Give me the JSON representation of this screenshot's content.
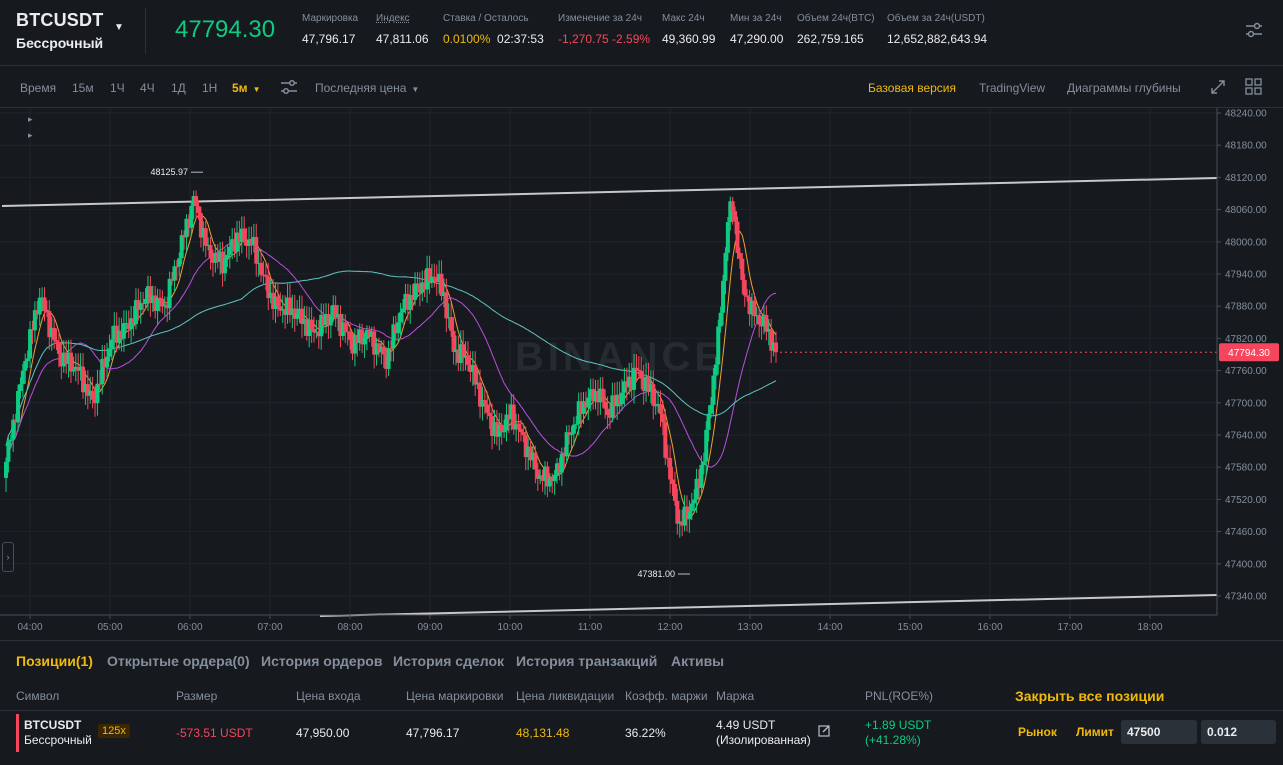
{
  "header": {
    "symbol": "BTCUSDT",
    "contract": "Бессрочный",
    "last_price": "47794.30",
    "stats": [
      {
        "label": "Маркировка",
        "value": "47,796.17"
      },
      {
        "label": "Индекс",
        "value": "47,811.06"
      },
      {
        "label": "Ставка / Осталось",
        "value_rate": "0.0100%",
        "value_time": "02:37:53"
      },
      {
        "label": "Изменение за 24ч",
        "value": "-1,270.75 -2.59%"
      },
      {
        "label": "Макс 24ч",
        "value": "49,360.99"
      },
      {
        "label": "Мин за 24ч",
        "value": "47,290.00"
      },
      {
        "label": "Объем 24ч(BTC)",
        "value": "262,759.165"
      },
      {
        "label": "Объем за 24ч(USDT)",
        "value": "12,652,882,643.94"
      }
    ]
  },
  "toolbar": {
    "time_label": "Время",
    "intervals": [
      "15м",
      "1Ч",
      "4Ч",
      "1Д",
      "1Н"
    ],
    "active_interval": "5м",
    "price_type": "Последняя цена",
    "views": [
      "Базовая версия",
      "TradingView",
      "Диаграммы глубины"
    ],
    "active_view": "Базовая версия"
  },
  "chart_data": {
    "type": "candlestick",
    "watermark": "BINANCE",
    "y_ticks": [
      "48240.00",
      "48180.00",
      "48120.00",
      "48060.00",
      "48000.00",
      "47940.00",
      "47880.00",
      "47820.00",
      "47760.00",
      "47700.00",
      "47640.00",
      "47580.00",
      "47520.00",
      "47460.00",
      "47400.00",
      "47340.00"
    ],
    "x_ticks": [
      "04:00",
      "05:00",
      "06:00",
      "07:00",
      "08:00",
      "09:00",
      "10:00",
      "11:00",
      "12:00",
      "13:00",
      "14:00",
      "15:00",
      "16:00",
      "17:00",
      "18:00"
    ],
    "ylim": [
      47310,
      48260
    ],
    "high_label": "48125.97",
    "low_label": "47381.00",
    "current_price_label": "47794.30",
    "colors": {
      "up": "#0ecb81",
      "down": "#f6465d",
      "ma_fast": "#f0a030",
      "ma_mid": "#b84fe0",
      "ma_slow": "#5fc4c4",
      "trendline": "#c8c8c8"
    }
  },
  "positions": {
    "tabs": [
      "Позиции(1)",
      "Открытые ордера(0)",
      "История ордеров",
      "История сделок",
      "История транзакций",
      "Активы"
    ],
    "columns": [
      "Символ",
      "Размер",
      "Цена входа",
      "Цена маркировки",
      "Цена ликвидации",
      "Коэфф. маржи",
      "Маржа",
      "PNL(ROE%)"
    ],
    "close_all": "Закрыть все позиции",
    "row": {
      "symbol": "BTCUSDT",
      "contract": "Бессрочный",
      "leverage": "125x",
      "size": "-573.51 USDT",
      "entry_price": "47,950.00",
      "mark_price": "47,796.17",
      "liq_price": "48,131.48",
      "margin_ratio": "36.22%",
      "margin": "4.49 USDT",
      "margin_mode": "(Изолированная)",
      "pnl": "+1.89 USDT",
      "roe": "(+41.28%)",
      "market_btn": "Рынок",
      "limit_btn": "Лимит",
      "limit_price": "47500",
      "limit_qty": "0.012"
    }
  }
}
